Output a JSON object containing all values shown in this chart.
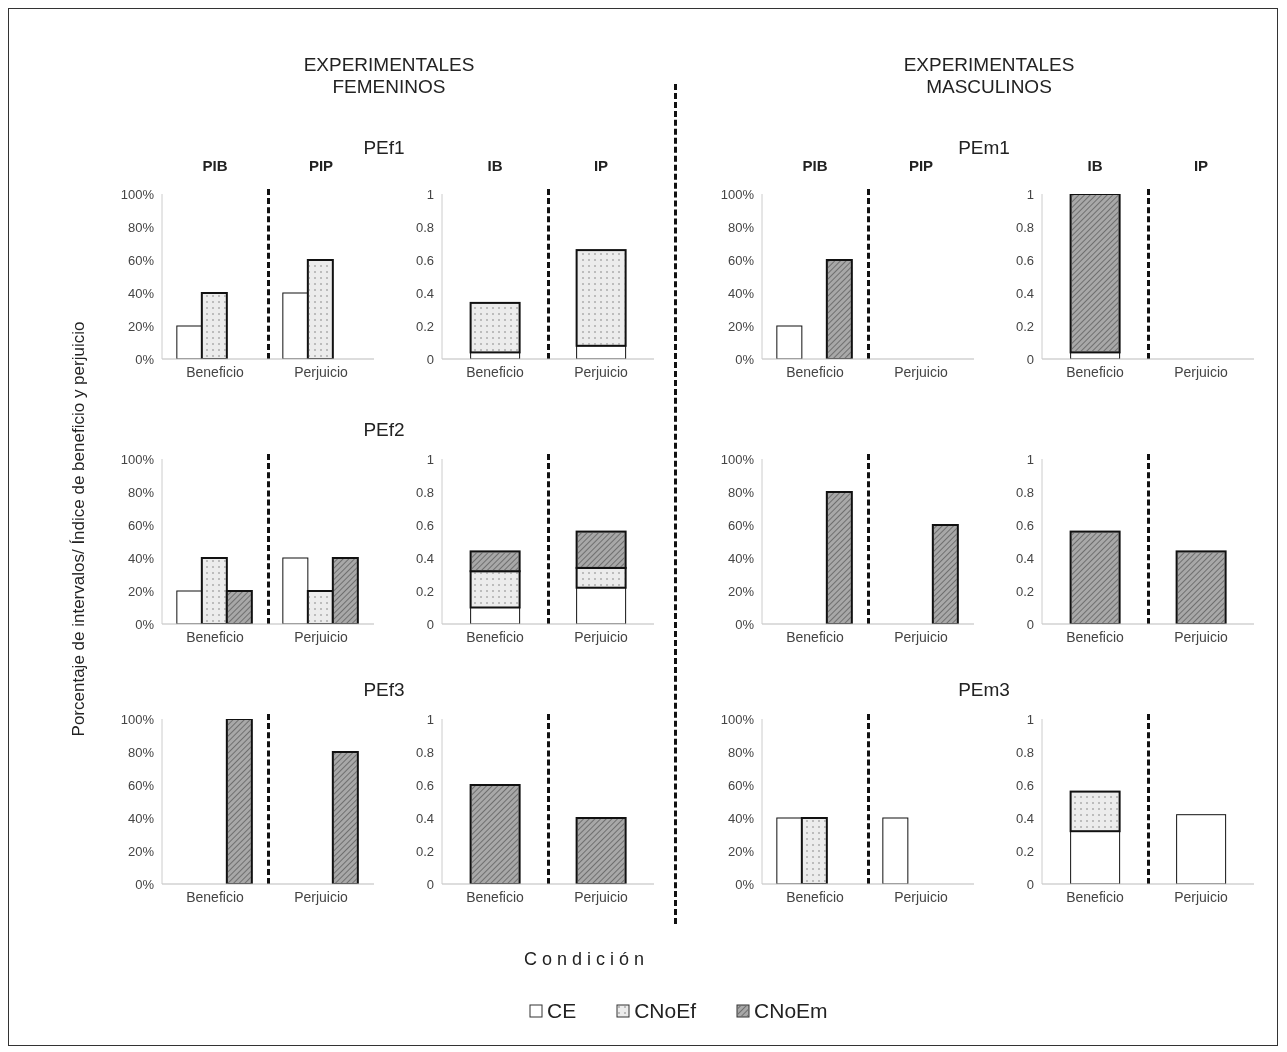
{
  "chart_data": [
    {
      "type": "bar",
      "title": "PEf1",
      "subtitle": "EXPERIMENTALES FEMENINOS",
      "ylabel": "Porcentaje de intervalos/ Índice de beneficio y perjuicio",
      "categories": [
        "Beneficio",
        "Perjuicio"
      ],
      "ylim": [
        0,
        100
      ],
      "yticks": [
        {
          "value": 0,
          "label": "0%"
        },
        {
          "value": 20,
          "label": "20%"
        },
        {
          "value": 40,
          "label": "40%"
        },
        {
          "value": 60,
          "label": "60%"
        },
        {
          "value": 80,
          "label": "80%"
        },
        {
          "value": 100,
          "label": "100%"
        }
      ],
      "annotations": [
        "PIB",
        "PIP"
      ],
      "series": [
        {
          "color": "#ffffff",
          "values": [
            20,
            40
          ]
        },
        {
          "color": "#ececec",
          "values": [
            40,
            60
          ]
        },
        {
          "color": "#a8a8a8",
          "values": [
            0,
            0
          ]
        }
      ]
    },
    {
      "type": "bar",
      "stacked": true,
      "categories": [
        "Beneficio",
        "Perjuicio"
      ],
      "ylim": [
        0,
        1
      ],
      "yticks": [
        0,
        0.2,
        0.4,
        0.6,
        0.8,
        1
      ],
      "annotations": [
        "IB",
        "IP"
      ],
      "series": [
        {
          "color": "#ffffff",
          "values": [
            0.04,
            0.08
          ]
        },
        {
          "color": "#ececec",
          "values": [
            0.3,
            0.58
          ]
        },
        {
          "color": "#a8a8a8",
          "values": [
            0,
            0
          ]
        }
      ]
    },
    {
      "type": "bar",
      "title": "PEm1",
      "subtitle": "EXPERIMENTALES MASCULINOS",
      "categories": [
        "Beneficio",
        "Perjuicio"
      ],
      "ylim": [
        0,
        100
      ],
      "yticks": [
        {
          "value": 0,
          "label": "0%"
        },
        {
          "value": 20,
          "label": "20%"
        },
        {
          "value": 40,
          "label": "40%"
        },
        {
          "value": 60,
          "label": "60%"
        },
        {
          "value": 80,
          "label": "80%"
        },
        {
          "value": 100,
          "label": "100%"
        }
      ],
      "annotations": [
        "PIB",
        "PIP"
      ],
      "series": [
        {
          "color": "#ffffff",
          "values": [
            20,
            0
          ]
        },
        {
          "color": "#ececec",
          "values": [
            0,
            0
          ]
        },
        {
          "color": "#a8a8a8",
          "values": [
            60,
            0
          ]
        }
      ]
    },
    {
      "type": "bar",
      "stacked": true,
      "categories": [
        "Beneficio",
        "Perjuicio"
      ],
      "ylim": [
        0,
        1
      ],
      "yticks": [
        0,
        0.2,
        0.4,
        0.6,
        0.8,
        1
      ],
      "annotations": [
        "IB",
        "IP"
      ],
      "series": [
        {
          "color": "#ffffff",
          "values": [
            0.04,
            0
          ]
        },
        {
          "color": "#ececec",
          "values": [
            0,
            0
          ]
        },
        {
          "color": "#a8a8a8",
          "values": [
            0.96,
            0
          ]
        }
      ]
    },
    {
      "type": "bar",
      "title": "PEf2",
      "categories": [
        "Beneficio",
        "Perjuicio"
      ],
      "ylim": [
        0,
        100
      ],
      "yticks": [
        {
          "value": 0,
          "label": "0%"
        },
        {
          "value": 20,
          "label": "20%"
        },
        {
          "value": 40,
          "label": "40%"
        },
        {
          "value": 60,
          "label": "60%"
        },
        {
          "value": 80,
          "label": "80%"
        },
        {
          "value": 100,
          "label": "100%"
        }
      ],
      "series": [
        {
          "color": "#ffffff",
          "values": [
            20,
            40
          ]
        },
        {
          "color": "#ececec",
          "values": [
            40,
            20
          ]
        },
        {
          "color": "#a8a8a8",
          "values": [
            20,
            40
          ]
        }
      ]
    },
    {
      "type": "bar",
      "stacked": true,
      "categories": [
        "Beneficio",
        "Perjuicio"
      ],
      "ylim": [
        0,
        1
      ],
      "yticks": [
        0,
        0.2,
        0.4,
        0.6,
        0.8,
        1
      ],
      "series": [
        {
          "color": "#ffffff",
          "values": [
            0.1,
            0.22
          ]
        },
        {
          "color": "#ececec",
          "values": [
            0.22,
            0.12
          ]
        },
        {
          "color": "#a8a8a8",
          "values": [
            0.12,
            0.22
          ]
        }
      ]
    },
    {
      "type": "bar",
      "categories": [
        "Beneficio",
        "Perjuicio"
      ],
      "ylim": [
        0,
        100
      ],
      "yticks": [
        {
          "value": 0,
          "label": "0%"
        },
        {
          "value": 20,
          "label": "20%"
        },
        {
          "value": 40,
          "label": "40%"
        },
        {
          "value": 60,
          "label": "60%"
        },
        {
          "value": 80,
          "label": "80%"
        },
        {
          "value": 100,
          "label": "100%"
        }
      ],
      "series": [
        {
          "color": "#ffffff",
          "values": [
            0,
            0
          ]
        },
        {
          "color": "#ececec",
          "values": [
            0,
            0
          ]
        },
        {
          "color": "#a8a8a8",
          "values": [
            80,
            60
          ]
        }
      ]
    },
    {
      "type": "bar",
      "stacked": true,
      "categories": [
        "Beneficio",
        "Perjuicio"
      ],
      "ylim": [
        0,
        1
      ],
      "yticks": [
        0,
        0.2,
        0.4,
        0.6,
        0.8,
        1
      ],
      "series": [
        {
          "color": "#ffffff",
          "values": [
            0,
            0
          ]
        },
        {
          "color": "#ececec",
          "values": [
            0,
            0
          ]
        },
        {
          "color": "#a8a8a8",
          "values": [
            0.56,
            0.44
          ]
        }
      ]
    },
    {
      "type": "bar",
      "title": "PEf3",
      "categories": [
        "Beneficio",
        "Perjuicio"
      ],
      "ylim": [
        0,
        100
      ],
      "yticks": [
        {
          "value": 0,
          "label": "0%"
        },
        {
          "value": 20,
          "label": "20%"
        },
        {
          "value": 40,
          "label": "40%"
        },
        {
          "value": 60,
          "label": "60%"
        },
        {
          "value": 80,
          "label": "80%"
        },
        {
          "value": 100,
          "label": "100%"
        }
      ],
      "series": [
        {
          "color": "#ffffff",
          "values": [
            0,
            0
          ]
        },
        {
          "color": "#ececec",
          "values": [
            0,
            0
          ]
        },
        {
          "color": "#a8a8a8",
          "values": [
            100,
            80
          ]
        }
      ]
    },
    {
      "type": "bar",
      "stacked": true,
      "xlabel": "C o n d i c i ó n",
      "legend": "bottom",
      "categories": [
        "Beneficio",
        "Perjuicio"
      ],
      "ylim": [
        0,
        1
      ],
      "yticks": [
        0,
        0.2,
        0.4,
        0.6,
        0.8,
        1
      ],
      "series": [
        {
          "name": "CE",
          "color": "#ffffff",
          "values": [
            0,
            0
          ]
        },
        {
          "name": "CNoEf",
          "color": "#ececec",
          "values": [
            0,
            0
          ]
        },
        {
          "name": "CNoEm",
          "color": "#a8a8a8",
          "values": [
            0.6,
            0.4
          ]
        }
      ]
    },
    {
      "type": "bar",
      "title": "PEm3",
      "categories": [
        "Beneficio",
        "Perjuicio"
      ],
      "ylim": [
        0,
        100
      ],
      "yticks": [
        {
          "value": 0,
          "label": "0%"
        },
        {
          "value": 20,
          "label": "20%"
        },
        {
          "value": 40,
          "label": "40%"
        },
        {
          "value": 60,
          "label": "60%"
        },
        {
          "value": 80,
          "label": "80%"
        },
        {
          "value": 100,
          "label": "100%"
        }
      ],
      "series": [
        {
          "color": "#ffffff",
          "values": [
            40,
            40
          ]
        },
        {
          "color": "#ececec",
          "values": [
            40,
            0
          ]
        },
        {
          "color": "#a8a8a8",
          "values": [
            0,
            0
          ]
        }
      ]
    },
    {
      "type": "bar",
      "stacked": true,
      "categories": [
        "Beneficio",
        "Perjuicio"
      ],
      "ylim": [
        0,
        1
      ],
      "yticks": [
        0,
        0.2,
        0.4,
        0.6,
        0.8,
        1
      ],
      "series": [
        {
          "color": "#ffffff",
          "values": [
            0.32,
            0.42
          ]
        },
        {
          "color": "#ececec",
          "values": [
            0.24,
            0
          ]
        },
        {
          "color": "#a8a8a8",
          "values": [
            0,
            0
          ]
        }
      ]
    }
  ]
}
